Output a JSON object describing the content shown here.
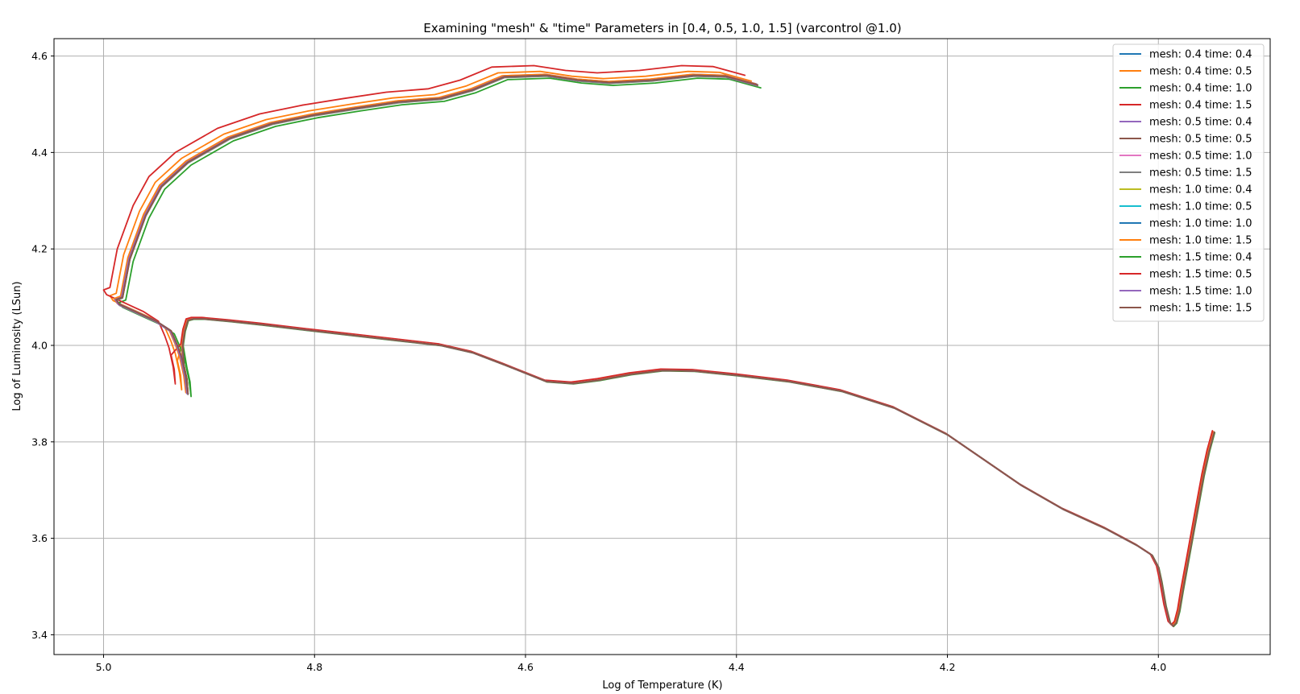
{
  "chart_data": {
    "type": "line",
    "title": "Examining \"mesh\" & \"time\" Parameters in [0.4, 0.5, 1.0, 1.5] (varcontrol @1.0)",
    "xlabel": "Log of Temperature (K)",
    "ylabel": "Log of Luminosity (LSun)",
    "xlim": [
      5.047,
      3.894
    ],
    "ylim": [
      3.359,
      4.636
    ],
    "x_inverted": true,
    "xticks": [
      "5.0",
      "4.8",
      "4.6",
      "4.4",
      "4.2",
      "4.0"
    ],
    "yticks": [
      "3.4",
      "3.6",
      "3.8",
      "4.0",
      "4.2",
      "4.4",
      "4.6"
    ],
    "grid": true,
    "legend_position": "top-right",
    "series": [
      {
        "name": "mesh: 0.4 time: 0.4",
        "color": "#1f77b4",
        "offset_x": 0.0,
        "offset_y": 0.0
      },
      {
        "name": "mesh: 0.4 time: 0.5",
        "color": "#ff7f0e",
        "offset_x": 0.006,
        "offset_y": 0.008
      },
      {
        "name": "mesh: 0.4 time: 1.0",
        "color": "#2ca02c",
        "offset_x": -0.003,
        "offset_y": -0.006
      },
      {
        "name": "mesh: 0.4 time: 1.5",
        "color": "#d62728",
        "offset_x": 0.012,
        "offset_y": 0.02
      },
      {
        "name": "mesh: 0.5 time: 0.4",
        "color": "#9467bd",
        "offset_x": 0.001,
        "offset_y": 0.002
      },
      {
        "name": "mesh: 0.5 time: 0.5",
        "color": "#8c564b",
        "offset_x": 0.0,
        "offset_y": 0.0
      },
      {
        "name": "mesh: 0.5 time: 1.0",
        "color": "#e377c2",
        "offset_x": 0.001,
        "offset_y": 0.001
      },
      {
        "name": "mesh: 0.5 time: 1.5",
        "color": "#7f7f7f",
        "offset_x": 0.0,
        "offset_y": -0.002
      },
      {
        "name": "mesh: 1.0 time: 0.4",
        "color": "#bcbd22",
        "offset_x": 0.0,
        "offset_y": 0.0
      },
      {
        "name": "mesh: 1.0 time: 0.5",
        "color": "#17becf",
        "offset_x": 0.0,
        "offset_y": 0.0
      },
      {
        "name": "mesh: 1.0 time: 1.0",
        "color": "#1f77b4",
        "offset_x": 0.0,
        "offset_y": 0.0
      },
      {
        "name": "mesh: 1.0 time: 1.5",
        "color": "#ff7f0e",
        "offset_x": 0.002,
        "offset_y": 0.002
      },
      {
        "name": "mesh: 1.5 time: 0.4",
        "color": "#2ca02c",
        "offset_x": 0.0,
        "offset_y": 0.0
      },
      {
        "name": "mesh: 1.5 time: 0.5",
        "color": "#d62728",
        "offset_x": 0.0,
        "offset_y": 0.0
      },
      {
        "name": "mesh: 1.5 time: 1.0",
        "color": "#9467bd",
        "offset_x": 0.001,
        "offset_y": 0.0
      },
      {
        "name": "mesh: 1.5 time: 1.5",
        "color": "#8c564b",
        "offset_x": 0.0,
        "offset_y": 0.0
      }
    ],
    "base_track": [
      [
        3.947,
        3.82
      ],
      [
        3.952,
        3.78
      ],
      [
        3.957,
        3.73
      ],
      [
        3.962,
        3.67
      ],
      [
        3.967,
        3.61
      ],
      [
        3.972,
        3.55
      ],
      [
        3.977,
        3.49
      ],
      [
        3.98,
        3.45
      ],
      [
        3.983,
        3.425
      ],
      [
        3.986,
        3.418
      ],
      [
        3.989,
        3.425
      ],
      [
        3.993,
        3.46
      ],
      [
        3.997,
        3.51
      ],
      [
        4.0,
        3.54
      ],
      [
        4.006,
        3.565
      ],
      [
        4.02,
        3.585
      ],
      [
        4.05,
        3.62
      ],
      [
        4.09,
        3.66
      ],
      [
        4.13,
        3.71
      ],
      [
        4.17,
        3.77
      ],
      [
        4.2,
        3.815
      ],
      [
        4.25,
        3.87
      ],
      [
        4.3,
        3.905
      ],
      [
        4.35,
        3.925
      ],
      [
        4.4,
        3.938
      ],
      [
        4.44,
        3.947
      ],
      [
        4.47,
        3.948
      ],
      [
        4.5,
        3.94
      ],
      [
        4.53,
        3.928
      ],
      [
        4.555,
        3.921
      ],
      [
        4.58,
        3.925
      ],
      [
        4.62,
        3.96
      ],
      [
        4.65,
        3.985
      ],
      [
        4.68,
        4.0
      ],
      [
        4.72,
        4.01
      ],
      [
        4.76,
        4.02
      ],
      [
        4.8,
        4.03
      ],
      [
        4.85,
        4.043
      ],
      [
        4.88,
        4.05
      ],
      [
        4.905,
        4.055
      ],
      [
        4.915,
        4.055
      ],
      [
        4.92,
        4.052
      ],
      [
        4.923,
        4.03
      ],
      [
        4.925,
        4.0
      ],
      [
        4.924,
        3.96
      ],
      [
        4.921,
        3.93
      ],
      [
        4.92,
        3.9
      ],
      [
        4.922,
        3.935
      ],
      [
        4.926,
        3.975
      ],
      [
        4.93,
        4.0
      ],
      [
        4.936,
        4.03
      ],
      [
        4.95,
        4.05
      ],
      [
        4.97,
        4.07
      ],
      [
        4.985,
        4.085
      ],
      [
        4.988,
        4.095
      ],
      [
        4.982,
        4.1
      ],
      [
        4.975,
        4.18
      ],
      [
        4.96,
        4.27
      ],
      [
        4.945,
        4.33
      ],
      [
        4.92,
        4.38
      ],
      [
        4.88,
        4.43
      ],
      [
        4.84,
        4.46
      ],
      [
        4.8,
        4.478
      ],
      [
        4.76,
        4.492
      ],
      [
        4.72,
        4.505
      ],
      [
        4.68,
        4.512
      ],
      [
        4.65,
        4.53
      ],
      [
        4.62,
        4.557
      ],
      [
        4.58,
        4.56
      ],
      [
        4.55,
        4.55
      ],
      [
        4.52,
        4.545
      ],
      [
        4.48,
        4.55
      ],
      [
        4.44,
        4.56
      ],
      [
        4.41,
        4.558
      ],
      [
        4.38,
        4.54
      ]
    ]
  }
}
